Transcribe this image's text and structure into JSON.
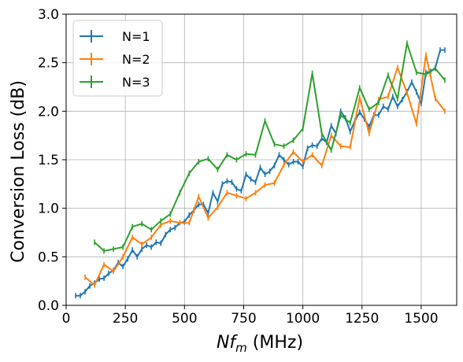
{
  "chart_data": {
    "type": "line",
    "title": "",
    "xlabel_main": "Nf",
    "xlabel_sub": "m",
    "xlabel_unit": " (MHz)",
    "ylabel": "Conversion Loss (dB)",
    "xlim": [
      0,
      1650
    ],
    "ylim": [
      0.0,
      3.0
    ],
    "xticks": [
      0,
      250,
      500,
      750,
      1000,
      1250,
      1500
    ],
    "xtick_labels": [
      "0",
      "250",
      "500",
      "750",
      "1000",
      "1250",
      "1500"
    ],
    "yticks": [
      0.0,
      0.5,
      1.0,
      1.5,
      2.0,
      2.5,
      3.0
    ],
    "ytick_labels": [
      "0.0",
      "0.5",
      "1.0",
      "1.5",
      "2.0",
      "2.5",
      "3.0"
    ],
    "grid": true,
    "legend_position": "top-left",
    "series": [
      {
        "name": "N=1",
        "color": "#1f77b4",
        "x": [
          40,
          60,
          80,
          100,
          120,
          140,
          160,
          180,
          200,
          220,
          240,
          260,
          280,
          300,
          320,
          340,
          360,
          380,
          400,
          420,
          440,
          460,
          480,
          500,
          520,
          540,
          560,
          580,
          600,
          620,
          640,
          660,
          680,
          700,
          720,
          740,
          760,
          780,
          800,
          820,
          840,
          860,
          880,
          900,
          920,
          940,
          960,
          980,
          1000,
          1020,
          1040,
          1060,
          1080,
          1100,
          1120,
          1140,
          1160,
          1180,
          1200,
          1220,
          1240,
          1260,
          1280,
          1300,
          1320,
          1340,
          1360,
          1380,
          1400,
          1420,
          1440,
          1460,
          1480,
          1500,
          1520,
          1540,
          1560,
          1580,
          1600
        ],
        "y": [
          0.1,
          0.1,
          0.14,
          0.2,
          0.23,
          0.27,
          0.28,
          0.33,
          0.36,
          0.44,
          0.4,
          0.48,
          0.57,
          0.5,
          0.58,
          0.62,
          0.6,
          0.65,
          0.64,
          0.73,
          0.78,
          0.8,
          0.85,
          0.86,
          0.93,
          0.98,
          1.04,
          1.04,
          0.95,
          1.16,
          1.07,
          1.25,
          1.28,
          1.27,
          1.2,
          1.18,
          1.35,
          1.3,
          1.27,
          1.42,
          1.35,
          1.38,
          1.44,
          1.55,
          1.5,
          1.45,
          1.48,
          1.48,
          1.43,
          1.62,
          1.65,
          1.64,
          1.72,
          1.68,
          1.85,
          1.77,
          2.0,
          1.93,
          1.79,
          1.9,
          1.99,
          1.92,
          1.84,
          1.96,
          1.96,
          2.05,
          2.02,
          2.15,
          2.05,
          2.12,
          2.2,
          2.3,
          2.2,
          2.08,
          2.4,
          2.41,
          2.45,
          2.63,
          2.63
        ]
      },
      {
        "name": "N=2",
        "color": "#ff7f0e",
        "x": [
          80,
          120,
          160,
          200,
          240,
          280,
          320,
          360,
          400,
          440,
          480,
          520,
          560,
          600,
          640,
          680,
          720,
          760,
          800,
          840,
          880,
          920,
          960,
          1000,
          1040,
          1080,
          1120,
          1160,
          1200,
          1240,
          1280,
          1320,
          1360,
          1400,
          1440,
          1480,
          1520,
          1560,
          1600
        ],
        "y": [
          0.29,
          0.21,
          0.42,
          0.35,
          0.5,
          0.7,
          0.63,
          0.7,
          0.83,
          0.87,
          0.85,
          0.85,
          1.12,
          0.9,
          1.01,
          1.16,
          1.13,
          1.1,
          1.16,
          1.24,
          1.26,
          1.45,
          1.58,
          1.48,
          1.55,
          1.44,
          1.75,
          1.64,
          1.63,
          2.14,
          1.77,
          2.12,
          2.15,
          2.45,
          2.19,
          1.87,
          2.58,
          2.13,
          2.0
        ]
      },
      {
        "name": "N=3",
        "color": "#2ca02c",
        "x": [
          120,
          160,
          200,
          240,
          280,
          320,
          360,
          400,
          440,
          480,
          520,
          560,
          600,
          640,
          680,
          720,
          760,
          800,
          840,
          880,
          920,
          960,
          1000,
          1040,
          1080,
          1120,
          1160,
          1200,
          1240,
          1280,
          1320,
          1360,
          1400,
          1440,
          1480,
          1520,
          1560,
          1600
        ],
        "y": [
          0.65,
          0.56,
          0.58,
          0.6,
          0.81,
          0.84,
          0.78,
          0.87,
          0.94,
          1.16,
          1.36,
          1.48,
          1.51,
          1.4,
          1.55,
          1.5,
          1.56,
          1.55,
          1.9,
          1.66,
          1.64,
          1.7,
          1.82,
          2.39,
          1.77,
          1.6,
          1.96,
          1.88,
          2.24,
          2.02,
          2.09,
          2.37,
          2.13,
          2.7,
          2.4,
          2.38,
          2.44,
          2.32
        ]
      }
    ]
  }
}
